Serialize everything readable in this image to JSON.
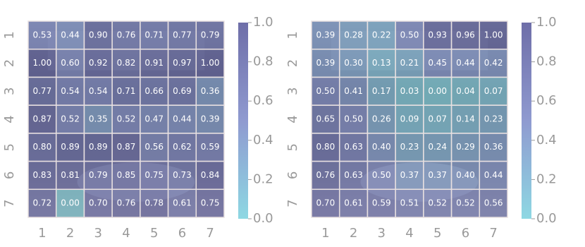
{
  "chart_data": [
    {
      "type": "heatmap",
      "x_categories": [
        "1",
        "2",
        "3",
        "4",
        "5",
        "6",
        "7"
      ],
      "y_categories": [
        "1",
        "2",
        "3",
        "4",
        "5",
        "6",
        "7"
      ],
      "values": [
        [
          0.53,
          0.44,
          0.9,
          0.76,
          0.71,
          0.77,
          0.79
        ],
        [
          1.0,
          0.6,
          0.92,
          0.82,
          0.91,
          0.97,
          1.0
        ],
        [
          0.77,
          0.54,
          0.54,
          0.71,
          0.66,
          0.69,
          0.36
        ],
        [
          0.87,
          0.52,
          0.35,
          0.52,
          0.47,
          0.44,
          0.39
        ],
        [
          0.8,
          0.89,
          0.89,
          0.87,
          0.56,
          0.62,
          0.59
        ],
        [
          0.83,
          0.81,
          0.79,
          0.85,
          0.75,
          0.73,
          0.84
        ],
        [
          0.72,
          0.0,
          0.7,
          0.76,
          0.78,
          0.61,
          0.75
        ]
      ],
      "value_labels": [
        [
          "0.53",
          "0.44",
          "0.90",
          "0.76",
          "0.71",
          "0.77",
          "0.79"
        ],
        [
          "1.00",
          "0.60",
          "0.92",
          "0.82",
          "0.91",
          "0.97",
          "1.00"
        ],
        [
          "0.77",
          "0.54",
          "0.54",
          "0.71",
          "0.66",
          "0.69",
          "0.36"
        ],
        [
          "0.87",
          "0.52",
          "0.35",
          "0.52",
          "0.47",
          "0.44",
          "0.39"
        ],
        [
          "0.80",
          "0.89",
          "0.89",
          "0.87",
          "0.56",
          "0.62",
          "0.59"
        ],
        [
          "0.83",
          "0.81",
          "0.79",
          "0.85",
          "0.75",
          "0.73",
          "0.84"
        ],
        [
          "0.72",
          "0.00",
          "0.70",
          "0.76",
          "0.78",
          "0.61",
          "0.75"
        ]
      ],
      "colormap": [
        "#8ed8e3",
        "#8f9ad0",
        "#6e6ea8"
      ],
      "clim": [
        0,
        1
      ],
      "cticks": [
        {
          "value": 0,
          "label": "0.0"
        },
        {
          "value": 0.2,
          "label": "0.2"
        },
        {
          "value": 0.4,
          "label": "0.4"
        },
        {
          "value": 0.6,
          "label": "0.6"
        },
        {
          "value": 0.8,
          "label": "0.8"
        },
        {
          "value": 1,
          "label": "1.0"
        }
      ]
    },
    {
      "type": "heatmap",
      "x_categories": [
        "1",
        "2",
        "3",
        "4",
        "5",
        "6",
        "7"
      ],
      "y_categories": [
        "1",
        "2",
        "3",
        "4",
        "5",
        "6",
        "7"
      ],
      "values": [
        [
          0.39,
          0.28,
          0.22,
          0.5,
          0.93,
          0.96,
          1.0
        ],
        [
          0.39,
          0.3,
          0.13,
          0.21,
          0.45,
          0.44,
          0.42
        ],
        [
          0.5,
          0.41,
          0.17,
          0.03,
          0.0,
          0.04,
          0.07
        ],
        [
          0.65,
          0.5,
          0.26,
          0.09,
          0.07,
          0.14,
          0.23
        ],
        [
          0.8,
          0.63,
          0.4,
          0.23,
          0.24,
          0.29,
          0.36
        ],
        [
          0.76,
          0.63,
          0.5,
          0.37,
          0.37,
          0.4,
          0.44
        ],
        [
          0.7,
          0.61,
          0.59,
          0.51,
          0.52,
          0.52,
          0.56
        ]
      ],
      "value_labels": [
        [
          "0.39",
          "0.28",
          "0.22",
          "0.50",
          "0.93",
          "0.96",
          "1.00"
        ],
        [
          "0.39",
          "0.30",
          "0.13",
          "0.21",
          "0.45",
          "0.44",
          "0.42"
        ],
        [
          "0.50",
          "0.41",
          "0.17",
          "0.03",
          "0.00",
          "0.04",
          "0.07"
        ],
        [
          "0.65",
          "0.50",
          "0.26",
          "0.09",
          "0.07",
          "0.14",
          "0.23"
        ],
        [
          "0.80",
          "0.63",
          "0.40",
          "0.23",
          "0.24",
          "0.29",
          "0.36"
        ],
        [
          "0.76",
          "0.63",
          "0.50",
          "0.37",
          "0.37",
          "0.40",
          "0.44"
        ],
        [
          "0.70",
          "0.61",
          "0.59",
          "0.51",
          "0.52",
          "0.52",
          "0.56"
        ]
      ],
      "colormap": [
        "#8ed8e3",
        "#8f9ad0",
        "#6e6ea8"
      ],
      "clim": [
        0,
        1
      ],
      "cticks": [
        {
          "value": 0,
          "label": "0.0"
        },
        {
          "value": 0.2,
          "label": "0.2"
        },
        {
          "value": 0.4,
          "label": "0.4"
        },
        {
          "value": 0.6,
          "label": "0.6"
        },
        {
          "value": 0.8,
          "label": "0.8"
        },
        {
          "value": 1,
          "label": "1.0"
        }
      ]
    }
  ]
}
